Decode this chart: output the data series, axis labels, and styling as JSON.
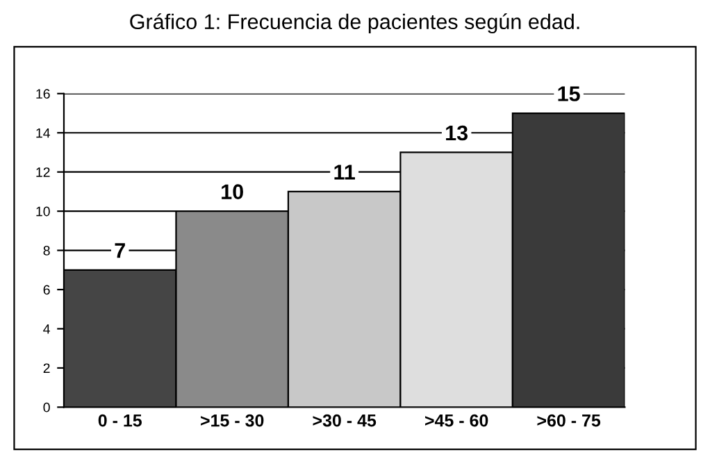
{
  "chart_data": {
    "type": "bar",
    "title": "Gráfico 1: Frecuencia de pacientes según edad.",
    "categories": [
      "0 - 15",
      ">15 - 30",
      ">30 - 45",
      ">45 - 60",
      ">60 - 75"
    ],
    "values": [
      7,
      10,
      11,
      13,
      15
    ],
    "colors": [
      "#454545",
      "#8a8a8a",
      "#c8c8c8",
      "#dedede",
      "#3a3a3a"
    ],
    "ylim": [
      0,
      16
    ],
    "yticks": [
      0,
      2,
      4,
      6,
      8,
      10,
      12,
      14,
      16
    ],
    "grid": "y",
    "data_labels": true
  }
}
